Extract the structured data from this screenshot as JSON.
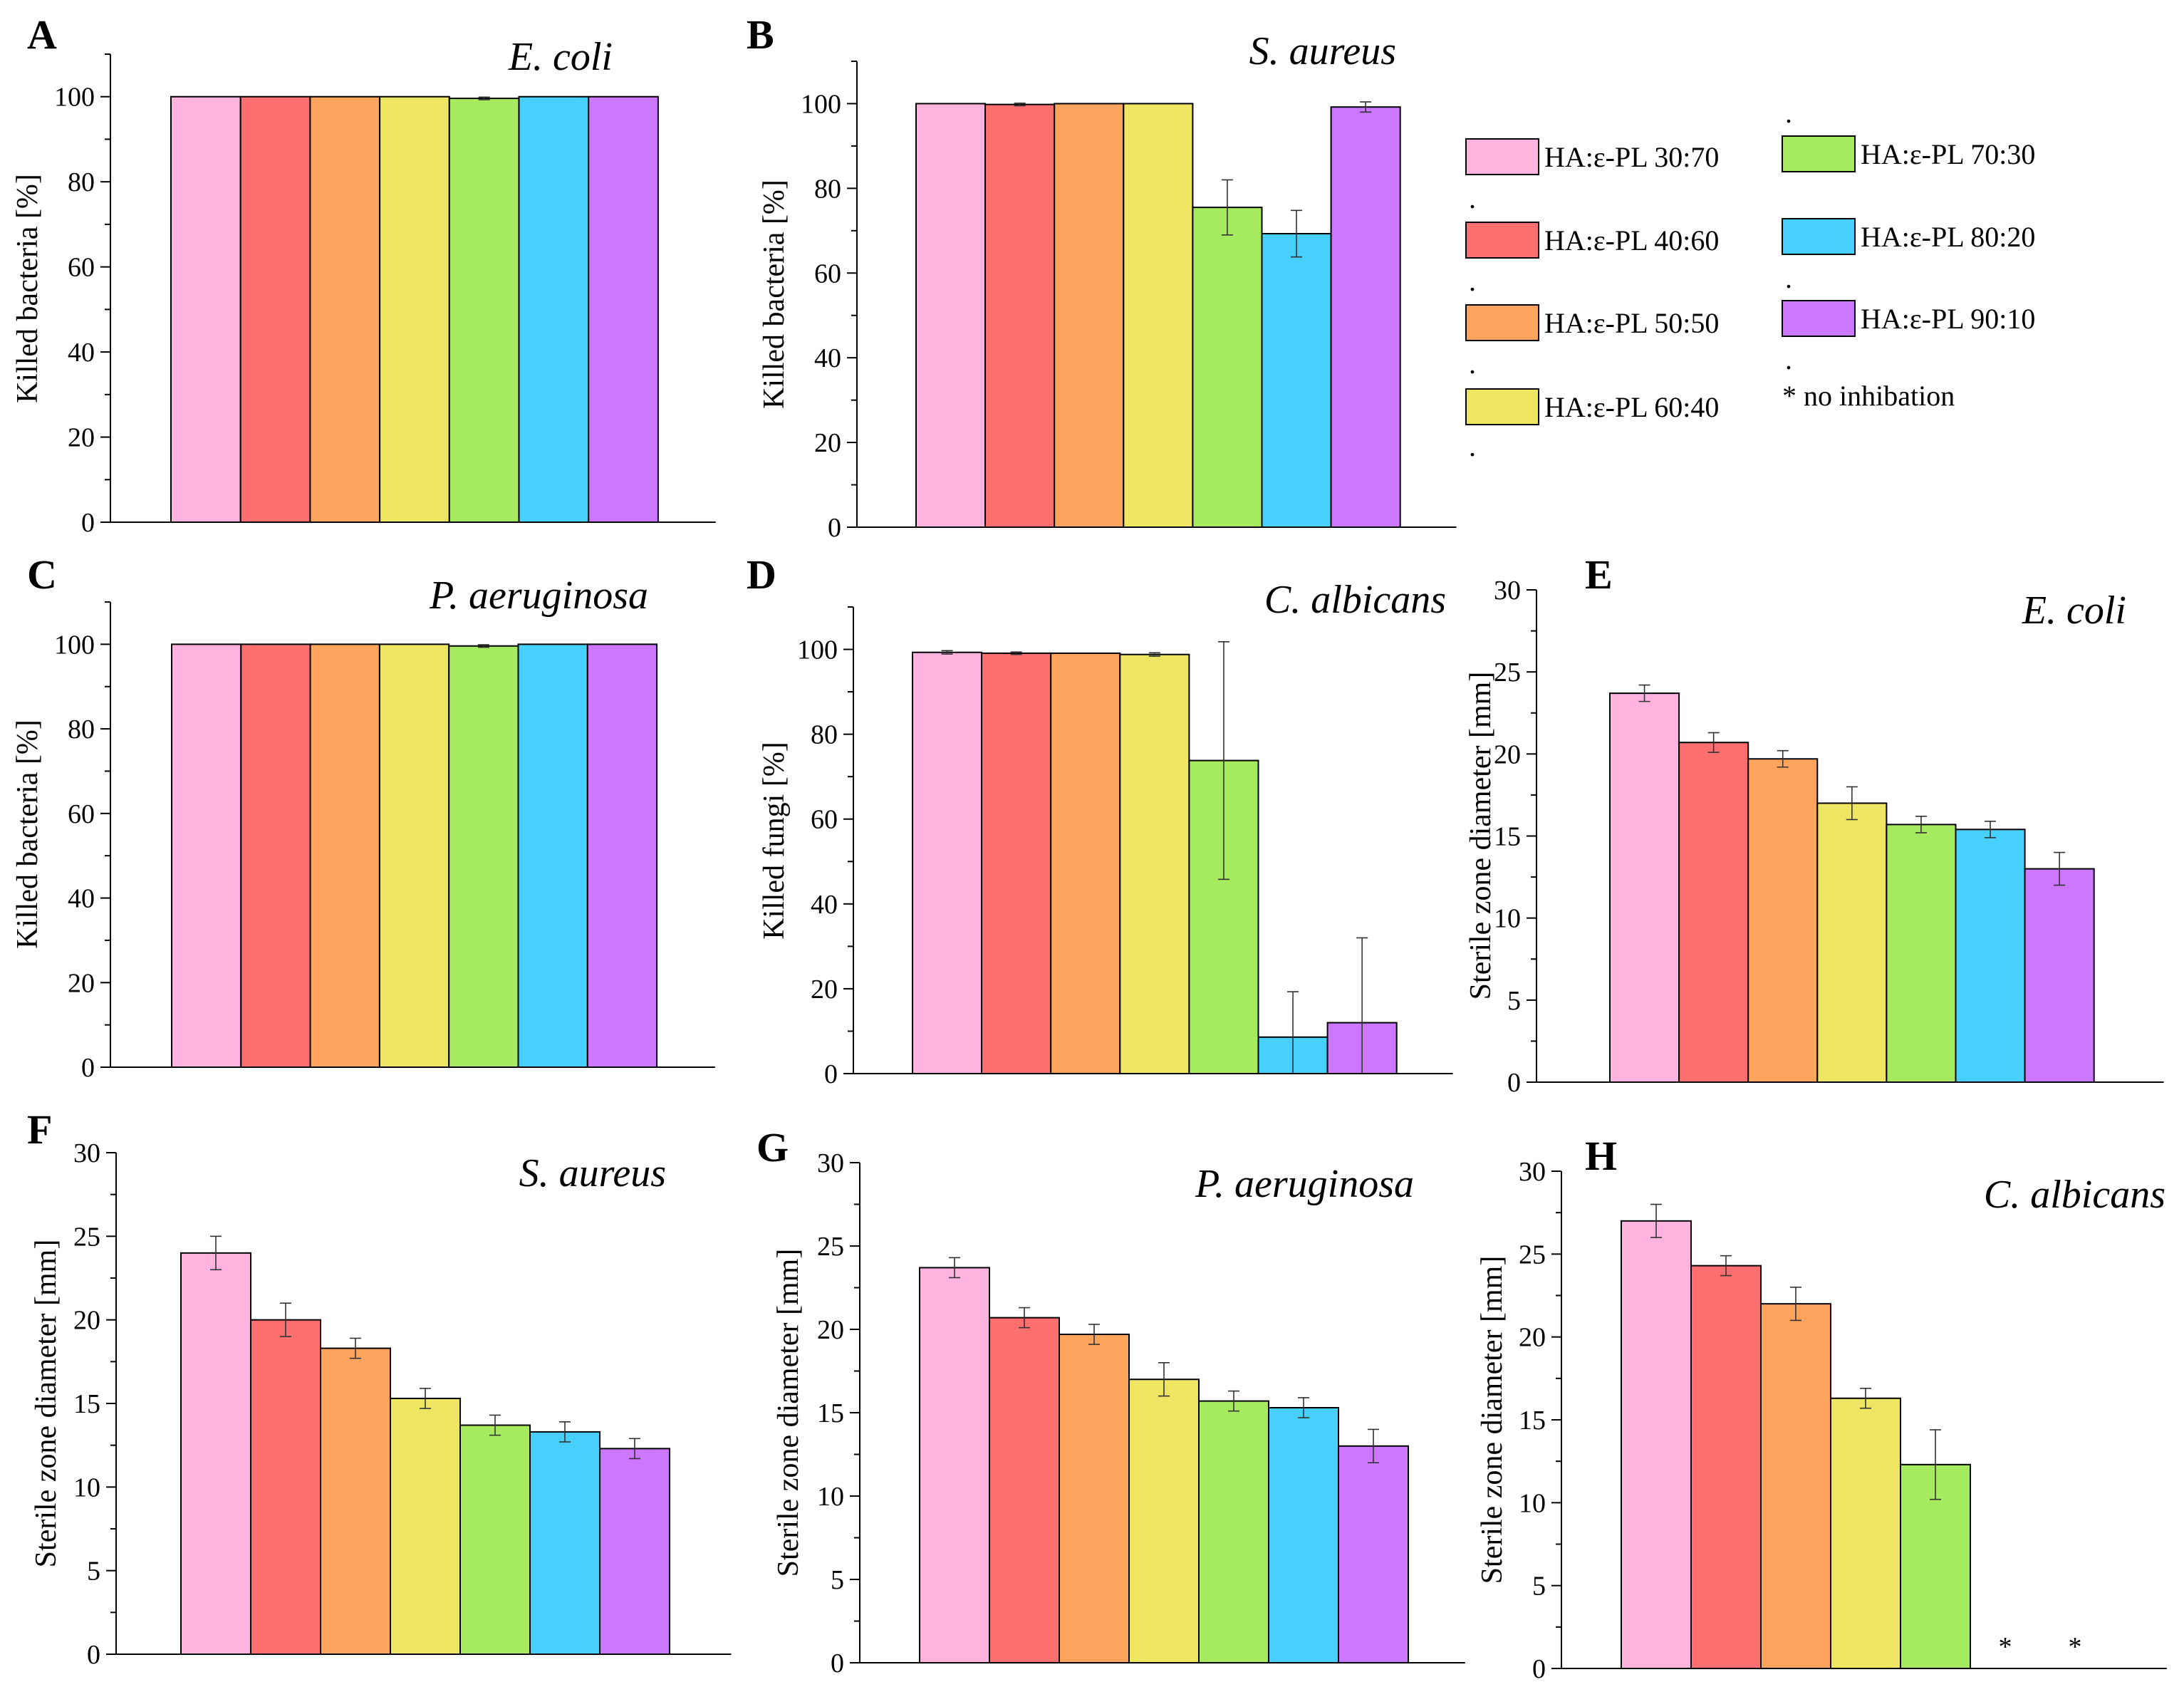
{
  "figure": {
    "series_names": [
      "HA:ε-PL 30:70",
      "HA:ε-PL 40:60",
      "HA:ε-PL 50:50",
      "HA:ε-PL 60:40",
      "HA:ε-PL 70:30",
      "HA:ε-PL 80:20",
      "HA:ε-PL 90:10"
    ],
    "series_colors": [
      "#FFB3DE",
      "#FF6F6F",
      "#FFA45C",
      "#EEE562",
      "#A6EB5F",
      "#47CFFE",
      "#CC77FF"
    ]
  },
  "legend": {
    "entries": [
      {
        "label": "HA:ε-PL 30:70",
        "color": "#FFB3DE"
      },
      {
        "label": "HA:ε-PL 40:60",
        "color": "#FF6F6F"
      },
      {
        "label": "HA:ε-PL 50:50",
        "color": "#FFA45C"
      },
      {
        "label": "HA:ε-PL 60:40",
        "color": "#EEE562"
      },
      {
        "label": "HA:ε-PL 70:30",
        "color": "#A6EB5F"
      },
      {
        "label": "HA:ε-PL 80:20",
        "color": "#47CFFE"
      },
      {
        "label": "HA:ε-PL 90:10",
        "color": "#CC77FF"
      }
    ],
    "note": "* no inhibation",
    "dot": "."
  },
  "chart_data": [
    {
      "id": "A",
      "type": "bar",
      "title": "E. coli",
      "ylabel": "Killed bacteria [%]",
      "ylim": [
        0,
        110
      ],
      "yticks": [
        0,
        20,
        40,
        60,
        80,
        100
      ],
      "values": [
        100,
        100,
        100,
        100,
        99.6,
        100,
        100
      ],
      "errors": [
        0,
        0,
        0,
        0,
        0.3,
        0,
        0
      ],
      "star": [
        false,
        false,
        false,
        false,
        false,
        false,
        false
      ],
      "star_label": "*"
    },
    {
      "id": "B",
      "type": "bar",
      "title": "S. aureus",
      "ylabel": "Killed bacteria [%]",
      "ylim": [
        0,
        110
      ],
      "yticks": [
        0,
        20,
        40,
        60,
        80,
        100
      ],
      "values": [
        100,
        99.8,
        100,
        100,
        75.5,
        69.3,
        99.2
      ],
      "errors": [
        0,
        0.3,
        0,
        0,
        6.5,
        5.5,
        1.2
      ],
      "star": [
        false,
        false,
        false,
        false,
        false,
        false,
        false
      ],
      "star_label": "*"
    },
    {
      "id": "C",
      "type": "bar",
      "title": "P. aeruginosa",
      "ylabel": "Killed bacteria [%]",
      "ylim": [
        0,
        110
      ],
      "yticks": [
        0,
        20,
        40,
        60,
        80,
        100
      ],
      "values": [
        100,
        100,
        100,
        100,
        99.6,
        100,
        100
      ],
      "errors": [
        0,
        0,
        0,
        0,
        0.3,
        0,
        0
      ],
      "star": [
        false,
        false,
        false,
        false,
        false,
        false,
        false
      ],
      "star_label": "*"
    },
    {
      "id": "D",
      "type": "bar",
      "title": "C. albicans",
      "ylabel": "Killed fungi [%]",
      "ylim": [
        0,
        110
      ],
      "yticks": [
        0,
        20,
        40,
        60,
        80,
        100
      ],
      "values": [
        99.3,
        99.1,
        99.1,
        98.8,
        73.8,
        8.6,
        12
      ],
      "errors": [
        0.4,
        0.3,
        0,
        0.4,
        28,
        10.7,
        20
      ],
      "star": [
        false,
        false,
        false,
        false,
        false,
        false,
        false
      ],
      "star_label": "*"
    },
    {
      "id": "E",
      "type": "bar",
      "title": "E. coli",
      "ylabel": "Sterile zone diameter [mm]",
      "ylim": [
        0,
        30
      ],
      "yticks": [
        0,
        5,
        10,
        15,
        20,
        25,
        30
      ],
      "values": [
        23.7,
        20.7,
        19.7,
        17,
        15.7,
        15.4,
        13
      ],
      "errors": [
        0.5,
        0.6,
        0.5,
        1,
        0.5,
        0.5,
        1
      ],
      "star": [
        false,
        false,
        false,
        false,
        false,
        false,
        false
      ],
      "star_label": "*"
    },
    {
      "id": "F",
      "type": "bar",
      "title": "S. aureus",
      "ylabel": "Sterile zone diameter [mm]",
      "ylim": [
        0,
        30
      ],
      "yticks": [
        0,
        5,
        10,
        15,
        20,
        25,
        30
      ],
      "values": [
        24,
        20,
        18.3,
        15.3,
        13.7,
        13.3,
        12.3
      ],
      "errors": [
        1,
        1,
        0.6,
        0.6,
        0.6,
        0.6,
        0.6
      ],
      "star": [
        false,
        false,
        false,
        false,
        false,
        false,
        false
      ],
      "star_label": "*"
    },
    {
      "id": "G",
      "type": "bar",
      "title": "P. aeruginosa",
      "ylabel": "Sterile zone diameter [mm]",
      "ylim": [
        0,
        30
      ],
      "yticks": [
        0,
        5,
        10,
        15,
        20,
        25,
        30
      ],
      "values": [
        23.7,
        20.7,
        19.7,
        17,
        15.7,
        15.3,
        13
      ],
      "errors": [
        0.6,
        0.6,
        0.6,
        1,
        0.6,
        0.6,
        1
      ],
      "star": [
        false,
        false,
        false,
        false,
        false,
        false,
        false
      ],
      "star_label": "*"
    },
    {
      "id": "H",
      "type": "bar",
      "title": "C. albicans",
      "ylabel": "Sterile zone diameter [mm]",
      "ylim": [
        0,
        30
      ],
      "yticks": [
        0,
        5,
        10,
        15,
        20,
        25,
        30
      ],
      "values": [
        27,
        24.3,
        22,
        16.3,
        12.3,
        0,
        0
      ],
      "errors": [
        1,
        0.6,
        1,
        0.6,
        2.1,
        0,
        0
      ],
      "star": [
        false,
        false,
        false,
        false,
        false,
        true,
        true
      ],
      "star_label": "*"
    }
  ]
}
